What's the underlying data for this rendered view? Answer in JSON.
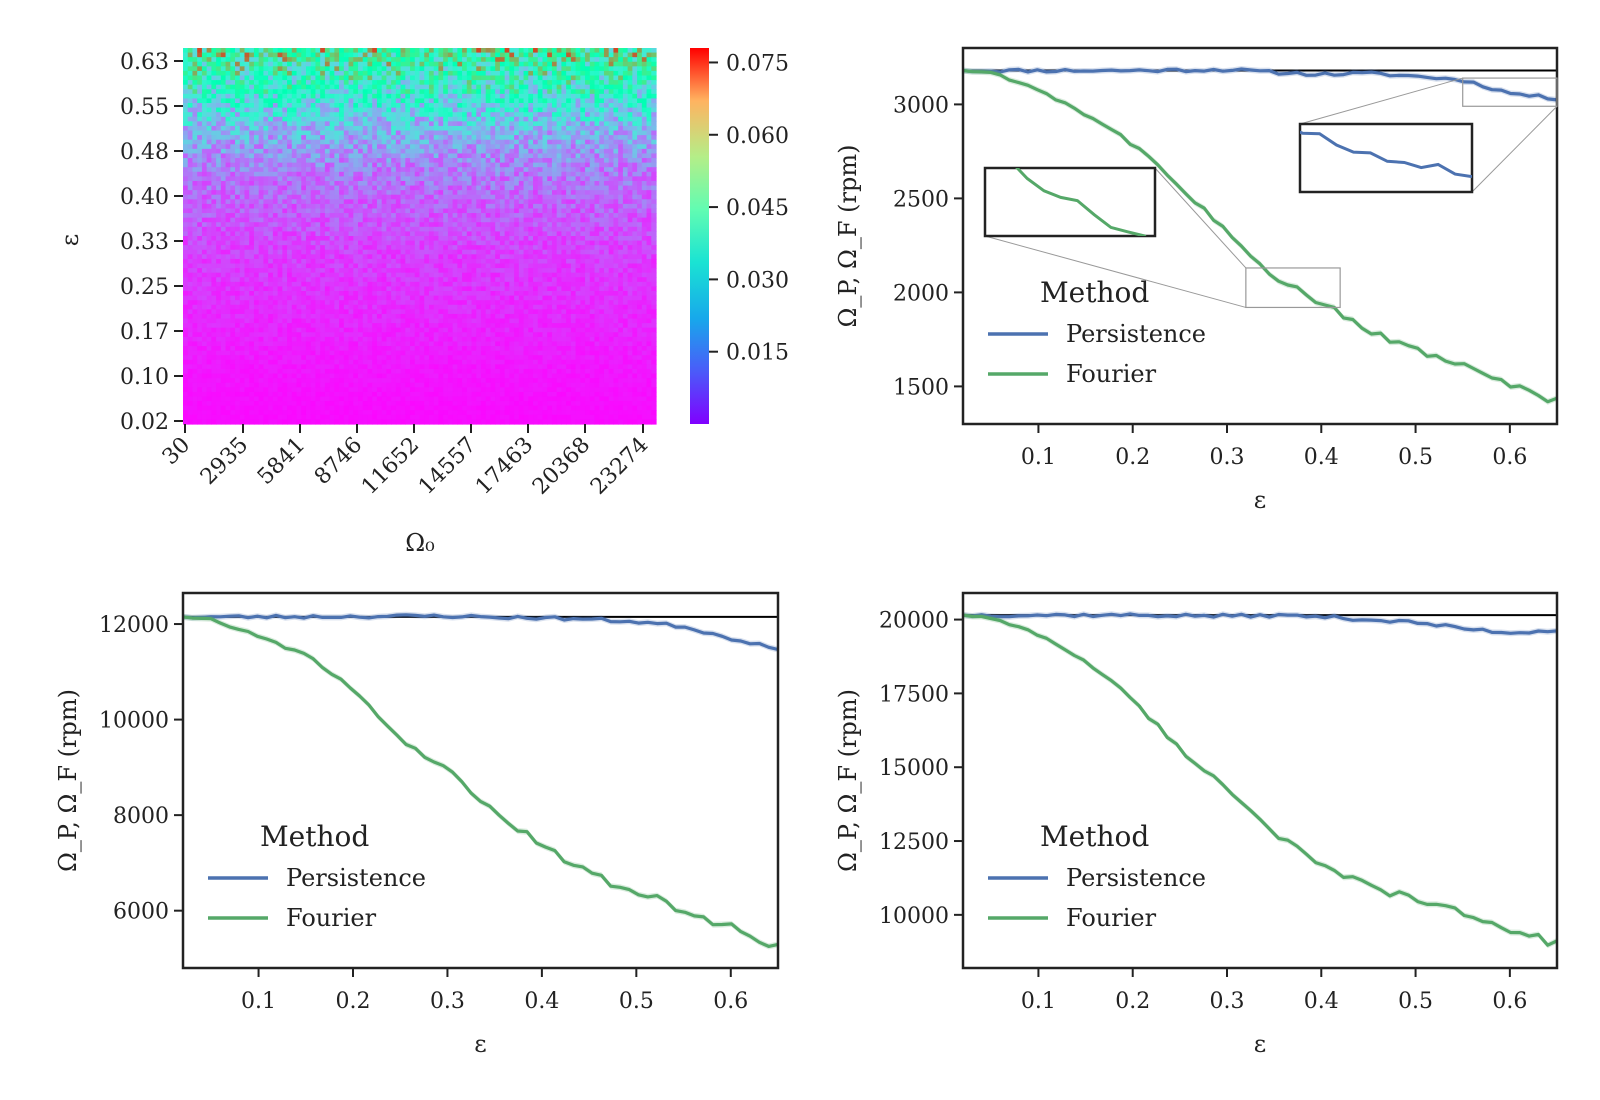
{
  "figure": {
    "colors": {
      "persistence": "#4c72b0",
      "fourier": "#55a868",
      "reference": "#000000",
      "frame": "#222222",
      "zoom_box": "#999999"
    }
  },
  "chart_data": [
    {
      "id": "heatmap",
      "type": "heatmap",
      "xlabel": "Ω₀",
      "ylabel": "ε",
      "x_tick_labels": [
        "30",
        "2935",
        "5841",
        "8746",
        "11652",
        "14557",
        "17463",
        "20368",
        "23274"
      ],
      "y_tick_labels": [
        "0.63",
        "0.55",
        "0.48",
        "0.40",
        "0.33",
        "0.25",
        "0.17",
        "0.10",
        "0.02"
      ],
      "y_range": [
        0.02,
        0.65
      ],
      "colormap": "rainbow",
      "colorbar": {
        "range": [
          0.0,
          0.078
        ],
        "tick_labels": [
          "0.075",
          "0.060",
          "0.045",
          "0.030",
          "0.015"
        ],
        "tick_values": [
          0.075,
          0.06,
          0.045,
          0.03,
          0.015
        ]
      },
      "trend": {
        "eps": [
          0.02,
          0.1,
          0.2,
          0.3,
          0.4,
          0.45,
          0.5,
          0.55,
          0.6,
          0.65
        ],
        "mean_value": [
          0.001,
          0.002,
          0.004,
          0.006,
          0.01,
          0.013,
          0.018,
          0.027,
          0.036,
          0.045
        ]
      }
    },
    {
      "id": "panel-3000",
      "type": "line",
      "xlabel": "ε",
      "ylabel": "Ω_P, Ω_F (rpm)",
      "xlim": [
        0.02,
        0.65
      ],
      "ylim": [
        1300,
        3300
      ],
      "x_ticks": [
        0.1,
        0.2,
        0.3,
        0.4,
        0.5,
        0.6
      ],
      "x_tick_labels": [
        "0.1",
        "0.2",
        "0.3",
        "0.4",
        "0.5",
        "0.6"
      ],
      "y_ticks": [
        1500,
        2000,
        2500,
        3000
      ],
      "y_tick_labels": [
        "1500",
        "2000",
        "2500",
        "3000"
      ],
      "reference_line": 3180,
      "legend": {
        "title": "Method",
        "placement": "lower-left"
      },
      "series": [
        {
          "name": "Persistence",
          "x": [
            0.02,
            0.1,
            0.2,
            0.3,
            0.35,
            0.4,
            0.45,
            0.5,
            0.55,
            0.6,
            0.65
          ],
          "y": [
            3180,
            3180,
            3180,
            3185,
            3170,
            3160,
            3165,
            3150,
            3130,
            3060,
            3030
          ]
        },
        {
          "name": "Fourier",
          "x": [
            0.02,
            0.05,
            0.1,
            0.15,
            0.2,
            0.25,
            0.3,
            0.35,
            0.4,
            0.45,
            0.5,
            0.55,
            0.6,
            0.65
          ],
          "y": [
            3180,
            3170,
            3080,
            2950,
            2790,
            2560,
            2330,
            2080,
            1940,
            1800,
            1700,
            1600,
            1510,
            1420
          ]
        }
      ],
      "insets": [
        {
          "region_x": [
            0.32,
            0.42
          ],
          "region_y": [
            1920,
            2130
          ]
        },
        {
          "region_x": [
            0.55,
            0.65
          ],
          "region_y": [
            2990,
            3140
          ]
        }
      ]
    },
    {
      "id": "panel-12000",
      "type": "line",
      "xlabel": "ε",
      "ylabel": "Ω_P, Ω_F (rpm)",
      "xlim": [
        0.02,
        0.65
      ],
      "ylim": [
        4800,
        12650
      ],
      "x_ticks": [
        0.1,
        0.2,
        0.3,
        0.4,
        0.5,
        0.6
      ],
      "x_tick_labels": [
        "0.1",
        "0.2",
        "0.3",
        "0.4",
        "0.5",
        "0.6"
      ],
      "y_ticks": [
        6000,
        8000,
        10000,
        12000
      ],
      "y_tick_labels": [
        "6000",
        "8000",
        "10000",
        "12000"
      ],
      "reference_line": 12150,
      "legend": {
        "title": "Method",
        "placement": "lower-left"
      },
      "series": [
        {
          "name": "Persistence",
          "x": [
            0.02,
            0.1,
            0.2,
            0.3,
            0.35,
            0.4,
            0.45,
            0.5,
            0.55,
            0.6,
            0.65
          ],
          "y": [
            12150,
            12150,
            12160,
            12170,
            12140,
            12130,
            12100,
            12050,
            11950,
            11700,
            11500
          ]
        },
        {
          "name": "Fourier",
          "x": [
            0.02,
            0.05,
            0.1,
            0.15,
            0.2,
            0.25,
            0.3,
            0.35,
            0.4,
            0.45,
            0.5,
            0.55,
            0.6,
            0.65
          ],
          "y": [
            12150,
            12100,
            11750,
            11350,
            10650,
            9600,
            8950,
            8050,
            7400,
            6750,
            6400,
            6000,
            5650,
            5250
          ]
        }
      ]
    },
    {
      "id": "panel-20000",
      "type": "line",
      "xlabel": "ε",
      "ylabel": "Ω_P, Ω_F (rpm)",
      "xlim": [
        0.02,
        0.65
      ],
      "ylim": [
        8200,
        20900
      ],
      "x_ticks": [
        0.1,
        0.2,
        0.3,
        0.4,
        0.5,
        0.6
      ],
      "x_tick_labels": [
        "0.1",
        "0.2",
        "0.3",
        "0.4",
        "0.5",
        "0.6"
      ],
      "y_ticks": [
        10000,
        12500,
        15000,
        17500,
        20000
      ],
      "y_tick_labels": [
        "10000",
        "12500",
        "15000",
        "17500",
        "20000"
      ],
      "reference_line": 20150,
      "legend": {
        "title": "Method",
        "placement": "lower-left"
      },
      "series": [
        {
          "name": "Persistence",
          "x": [
            0.02,
            0.1,
            0.2,
            0.3,
            0.35,
            0.4,
            0.45,
            0.5,
            0.55,
            0.6,
            0.65
          ],
          "y": [
            20150,
            20150,
            20150,
            20120,
            20140,
            20100,
            20000,
            19900,
            19700,
            19550,
            19650
          ]
        },
        {
          "name": "Fourier",
          "x": [
            0.02,
            0.05,
            0.1,
            0.15,
            0.2,
            0.25,
            0.3,
            0.35,
            0.4,
            0.45,
            0.5,
            0.55,
            0.6,
            0.65
          ],
          "y": [
            20150,
            20050,
            19500,
            18600,
            17300,
            15600,
            14300,
            12800,
            11600,
            11000,
            10500,
            10050,
            9500,
            9000
          ]
        }
      ]
    }
  ]
}
